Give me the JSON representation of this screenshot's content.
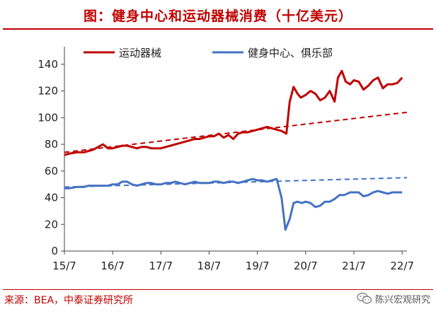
{
  "header": {
    "title": "图：健身中心和运动器械消费（十亿美元）"
  },
  "footer": {
    "source": "来源：BEA，中泰证券研究所",
    "watermark": "陈兴宏观研究",
    "watermark_icon": "wechat-icon"
  },
  "chart_data": {
    "type": "line",
    "title": "",
    "xlabel": "",
    "ylabel": "",
    "ylim": [
      0,
      150
    ],
    "yticks": [
      0,
      20,
      40,
      60,
      80,
      100,
      120,
      140
    ],
    "xlim": [
      2015.5,
      2022.6
    ],
    "xticks": [
      {
        "value": 2015.5,
        "label": "15/7"
      },
      {
        "value": 2016.5,
        "label": "16/7"
      },
      {
        "value": 2017.5,
        "label": "17/7"
      },
      {
        "value": 2018.5,
        "label": "18/7"
      },
      {
        "value": 2019.5,
        "label": "19/7"
      },
      {
        "value": 2020.5,
        "label": "20/7"
      },
      {
        "value": 2021.5,
        "label": "21/7"
      },
      {
        "value": 2022.5,
        "label": "22/7"
      }
    ],
    "grid": false,
    "legend": "top",
    "series": [
      {
        "name": "运动器械",
        "color": "#c00000",
        "x": [
          2015.5,
          2015.6,
          2015.75,
          2015.9,
          2016.0,
          2016.1,
          2016.2,
          2016.3,
          2016.4,
          2016.5,
          2016.6,
          2016.7,
          2016.8,
          2016.9,
          2017.0,
          2017.1,
          2017.2,
          2017.3,
          2017.4,
          2017.5,
          2017.6,
          2017.7,
          2017.8,
          2017.9,
          2018.0,
          2018.1,
          2018.2,
          2018.3,
          2018.4,
          2018.5,
          2018.6,
          2018.7,
          2018.8,
          2018.9,
          2019.0,
          2019.1,
          2019.2,
          2019.3,
          2019.4,
          2019.5,
          2019.6,
          2019.7,
          2019.8,
          2019.9,
          2020.0,
          2020.1,
          2020.17,
          2020.25,
          2020.33,
          2020.4,
          2020.5,
          2020.6,
          2020.7,
          2020.8,
          2020.9,
          2021.0,
          2021.1,
          2021.17,
          2021.25,
          2021.33,
          2021.42,
          2021.5,
          2021.6,
          2021.7,
          2021.8,
          2021.9,
          2022.0,
          2022.1,
          2022.2,
          2022.3,
          2022.4,
          2022.5
        ],
        "values": [
          72,
          73,
          74,
          74,
          75,
          76,
          78,
          80,
          77,
          77,
          78,
          79,
          79,
          78,
          77,
          78,
          78,
          77,
          77,
          77,
          78,
          79,
          80,
          81,
          82,
          83,
          84,
          84,
          85,
          86,
          86,
          88,
          85,
          87,
          84,
          88,
          89,
          89,
          90,
          91,
          92,
          93,
          92,
          91,
          90,
          88,
          112,
          123,
          118,
          115,
          117,
          120,
          118,
          113,
          115,
          120,
          112,
          130,
          135,
          127,
          125,
          128,
          127,
          121,
          124,
          128,
          130,
          122,
          125,
          125,
          126,
          130
        ],
        "trend": {
          "x": [
            2015.5,
            2022.6
          ],
          "values": [
            74,
            104
          ]
        }
      },
      {
        "name": "健身中心、俱乐部",
        "color": "#4472c4",
        "x": [
          2015.5,
          2015.6,
          2015.75,
          2015.9,
          2016.0,
          2016.1,
          2016.2,
          2016.3,
          2016.4,
          2016.5,
          2016.6,
          2016.7,
          2016.8,
          2016.9,
          2017.0,
          2017.1,
          2017.2,
          2017.3,
          2017.4,
          2017.5,
          2017.6,
          2017.7,
          2017.8,
          2017.9,
          2018.0,
          2018.1,
          2018.2,
          2018.3,
          2018.4,
          2018.5,
          2018.6,
          2018.7,
          2018.8,
          2018.9,
          2019.0,
          2019.1,
          2019.2,
          2019.3,
          2019.4,
          2019.5,
          2019.6,
          2019.7,
          2019.8,
          2019.9,
          2020.0,
          2020.08,
          2020.17,
          2020.25,
          2020.33,
          2020.42,
          2020.5,
          2020.6,
          2020.7,
          2020.8,
          2020.9,
          2021.0,
          2021.1,
          2021.2,
          2021.3,
          2021.42,
          2021.5,
          2021.6,
          2021.7,
          2021.8,
          2021.9,
          2022.0,
          2022.1,
          2022.2,
          2022.3,
          2022.4,
          2022.5
        ],
        "values": [
          47,
          47,
          48,
          48,
          49,
          49,
          49,
          49,
          49,
          50,
          50,
          52,
          52,
          50,
          49,
          50,
          51,
          51,
          50,
          50,
          51,
          51,
          52,
          51,
          50,
          51,
          52,
          51,
          51,
          51,
          52,
          52,
          51,
          52,
          52,
          51,
          52,
          53,
          54,
          53,
          53,
          52,
          53,
          54,
          40,
          16,
          24,
          36,
          37,
          36,
          37,
          36,
          33,
          34,
          37,
          37,
          39,
          42,
          42,
          44,
          44,
          44,
          41,
          42,
          44,
          45,
          44,
          43,
          44,
          44,
          44
        ],
        "trend": {
          "x": [
            2015.5,
            2022.6
          ],
          "values": [
            48,
            55
          ]
        }
      }
    ]
  }
}
